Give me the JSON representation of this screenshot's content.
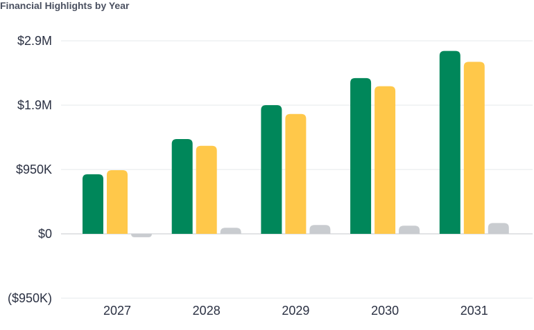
{
  "chart_data": {
    "type": "bar",
    "title": "Financial Highlights by Year",
    "xlabel": "",
    "ylabel": "",
    "categories": [
      "2027",
      "2028",
      "2029",
      "2030",
      "2031"
    ],
    "series": [
      {
        "color": "#00875a",
        "values": [
          880000,
          1400000,
          1900000,
          2300000,
          2700000
        ]
      },
      {
        "color": "#ffc84a",
        "values": [
          940000,
          1300000,
          1770000,
          2180000,
          2540000
        ]
      },
      {
        "color": "#c9ccd0",
        "values": [
          -50000,
          90000,
          130000,
          120000,
          160000
        ]
      }
    ],
    "ylim": [
      -950000,
      2850000
    ],
    "yticks": [
      {
        "value": 2850000,
        "label": "$2.9M"
      },
      {
        "value": 1900000,
        "label": "$1.9M"
      },
      {
        "value": 950000,
        "label": "$950K"
      },
      {
        "value": 0,
        "label": "$0"
      },
      {
        "value": -950000,
        "label": "($950K)"
      }
    ],
    "grid": true,
    "legend": "none",
    "gridline_color": "#e6e8eb",
    "zero_line_color": "#c4c7cc"
  }
}
